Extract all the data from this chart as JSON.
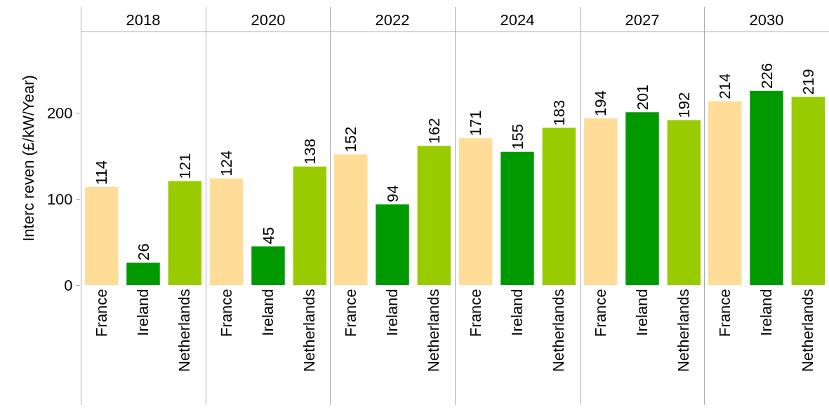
{
  "chart_data": [
    {
      "type": "bar",
      "title": "2018",
      "ylabel": "Interc reven (£/kW/Year)",
      "categories": [
        "France",
        "Ireland",
        "Netherlands"
      ],
      "values": [
        114,
        26,
        121
      ],
      "colors": [
        "#ffdd99",
        "#009900",
        "#99cc00"
      ],
      "ylim": [
        0,
        295
      ],
      "yticks": [
        0,
        100,
        200
      ],
      "data_labels": true
    },
    {
      "type": "bar",
      "title": "2020",
      "categories": [
        "France",
        "Ireland",
        "Netherlands"
      ],
      "values": [
        124,
        45,
        138
      ],
      "colors": [
        "#ffdd99",
        "#009900",
        "#99cc00"
      ],
      "ylim": [
        0,
        295
      ],
      "yticks": [
        0,
        100,
        200
      ],
      "data_labels": true,
      "tick_labels": "x"
    },
    {
      "type": "bar",
      "title": "2022",
      "categories": [
        "France",
        "Ireland",
        "Netherlands"
      ],
      "values": [
        152,
        94,
        162
      ],
      "colors": [
        "#ffdd99",
        "#009900",
        "#99cc00"
      ],
      "ylim": [
        0,
        295
      ],
      "yticks": [
        0,
        100,
        200
      ],
      "data_labels": true,
      "tick_labels": "x"
    },
    {
      "type": "bar",
      "title": "2024",
      "categories": [
        "France",
        "Ireland",
        "Netherlands"
      ],
      "values": [
        171,
        155,
        183
      ],
      "colors": [
        "#ffdd99",
        "#009900",
        "#99cc00"
      ],
      "ylim": [
        0,
        295
      ],
      "yticks": [
        0,
        100,
        200
      ],
      "data_labels": true,
      "tick_labels": "x"
    },
    {
      "type": "bar",
      "title": "2027",
      "categories": [
        "France",
        "Ireland",
        "Netherlands"
      ],
      "values": [
        194,
        201,
        192
      ],
      "colors": [
        "#ffdd99",
        "#009900",
        "#99cc00"
      ],
      "ylim": [
        0,
        295
      ],
      "yticks": [
        0,
        100,
        200
      ],
      "data_labels": true,
      "tick_labels": "x"
    },
    {
      "type": "bar",
      "title": "2030",
      "categories": [
        "France",
        "Ireland",
        "Netherlands"
      ],
      "values": [
        214,
        226,
        219
      ],
      "colors": [
        "#ffdd99",
        "#009900",
        "#99cc00"
      ],
      "ylim": [
        0,
        295
      ],
      "yticks": [
        0,
        100,
        200
      ],
      "data_labels": true,
      "tick_labels": "x"
    }
  ]
}
